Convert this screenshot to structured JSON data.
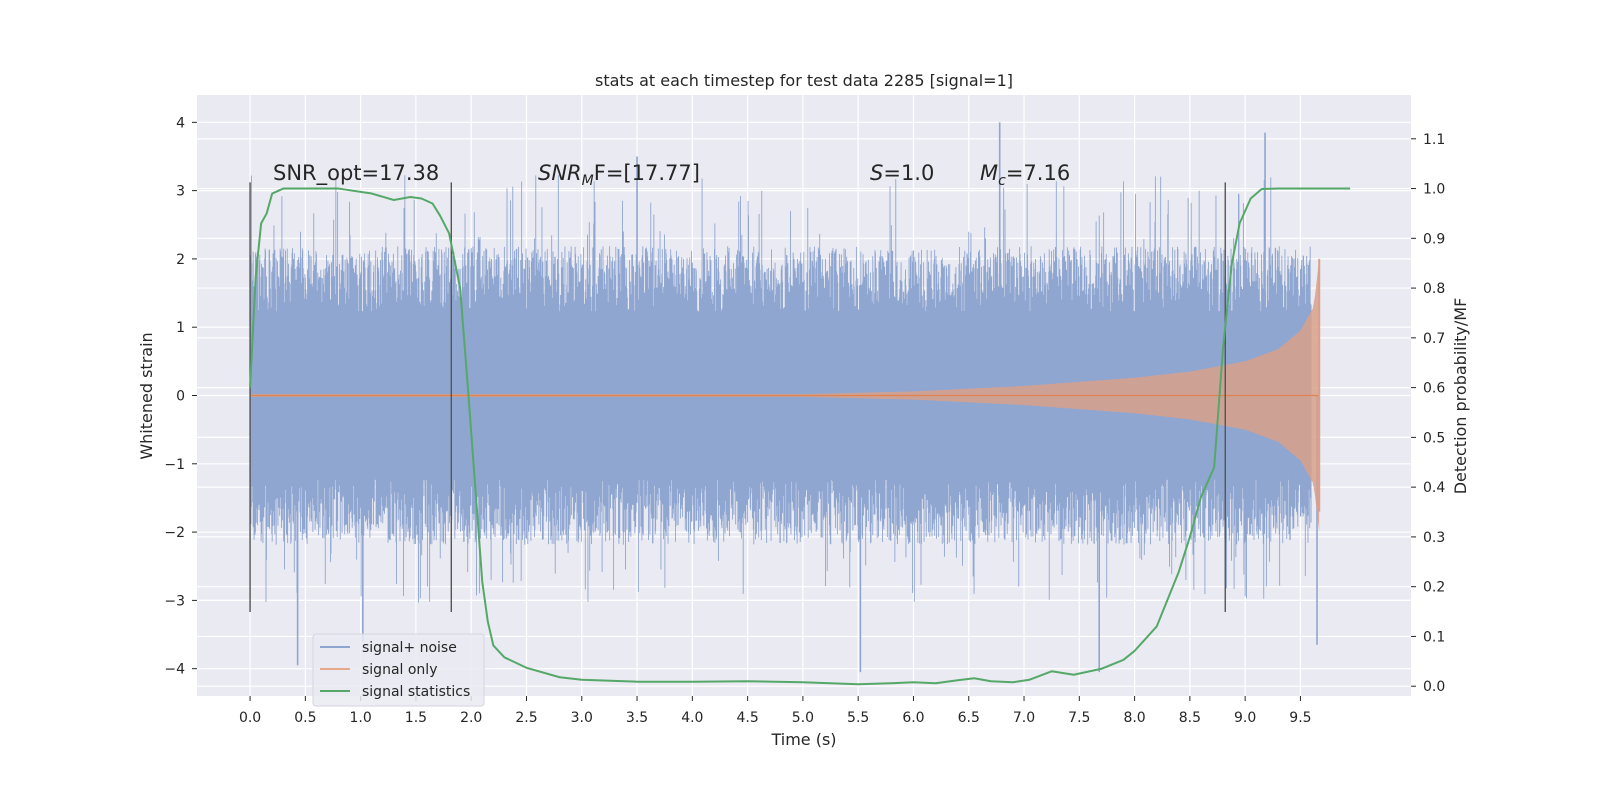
{
  "chart_data": {
    "type": "line",
    "title": "stats at each timestep for test data 2285 [signal=1]",
    "xlabel": "Time (s)",
    "ylabel": "Whitened strain",
    "y2label": "Detection probability/MF",
    "xlim": [
      -0.48,
      10.5
    ],
    "ylim": [
      -4.4,
      4.4
    ],
    "y2lim": [
      -0.0197,
      1.188
    ],
    "x_ticks": [
      "0.0",
      "0.5",
      "1.0",
      "1.5",
      "2.0",
      "2.5",
      "3.0",
      "3.5",
      "4.0",
      "4.5",
      "5.0",
      "5.5",
      "6.0",
      "6.5",
      "7.0",
      "7.5",
      "8.0",
      "8.5",
      "9.0",
      "9.5"
    ],
    "y_ticks": [
      "4",
      "3",
      "2",
      "1",
      "0",
      "−1",
      "−2",
      "−3",
      "−4"
    ],
    "y2_ticks": [
      "1.1",
      "1.0",
      "0.9",
      "0.8",
      "0.7",
      "0.6",
      "0.5",
      "0.4",
      "0.3",
      "0.2",
      "0.1",
      "0.0"
    ],
    "grid": true,
    "legend_position": "lower-left",
    "annotations": {
      "snr_opt": "SNR_opt=17.38",
      "snr_mf_main": "SNR",
      "snr_mf_sub": "M",
      "snr_mf_rest": "F=[17.77]",
      "s_main": "S",
      "s_rest": "=1.0",
      "mc_main": "M",
      "mc_sub": "c",
      "mc_rest": "=7.16"
    },
    "vertical_markers": [
      0.0,
      1.82,
      8.82
    ],
    "vertical_marker_range": [
      -3.17,
      3.12
    ],
    "series": [
      {
        "name": "signal+ noise",
        "color": "#8fa6d1",
        "description": "noise band, duration 0–9.6 s",
        "typical_amplitude": 1.9,
        "extremes": [
          [
            0.43,
            -3.95
          ],
          [
            6.78,
            4.0
          ],
          [
            9.18,
            3.85
          ],
          [
            5.52,
            -4.05
          ],
          [
            7.68,
            -4.05
          ],
          [
            3.5,
            3.5
          ],
          [
            1.02,
            -3.6
          ],
          [
            9.65,
            -3.65
          ]
        ]
      },
      {
        "name": "signal only",
        "color": "#dd8452",
        "description": "chirp growing toward merger at ~9.67 s",
        "envelope": [
          [
            0.0,
            0.02
          ],
          [
            5.0,
            0.02
          ],
          [
            6.0,
            0.06
          ],
          [
            7.0,
            0.14
          ],
          [
            8.0,
            0.26
          ],
          [
            8.5,
            0.35
          ],
          [
            9.0,
            0.5
          ],
          [
            9.3,
            0.68
          ],
          [
            9.5,
            0.95
          ],
          [
            9.62,
            1.3
          ],
          [
            9.67,
            2.0
          ]
        ]
      },
      {
        "name": "signal statistics",
        "color": "#55a868",
        "axis": "right",
        "x": [
          0.0,
          0.05,
          0.1,
          0.15,
          0.2,
          0.3,
          0.5,
          0.8,
          1.1,
          1.3,
          1.45,
          1.55,
          1.65,
          1.72,
          1.8,
          1.9,
          1.97,
          2.03,
          2.1,
          2.15,
          2.2,
          2.3,
          2.5,
          2.8,
          3.0,
          3.5,
          4.0,
          4.5,
          5.0,
          5.5,
          5.8,
          6.0,
          6.2,
          6.4,
          6.55,
          6.7,
          6.9,
          7.05,
          7.25,
          7.45,
          7.7,
          7.9,
          8.0,
          8.2,
          8.4,
          8.5,
          8.6,
          8.72,
          8.8,
          8.88,
          8.95,
          9.05,
          9.15,
          9.3,
          9.6,
          9.95
        ],
        "y": [
          0.6,
          0.82,
          0.93,
          0.95,
          0.99,
          1.0,
          1.0,
          1.0,
          0.99,
          0.977,
          0.983,
          0.98,
          0.97,
          0.945,
          0.91,
          0.8,
          0.6,
          0.42,
          0.21,
          0.13,
          0.082,
          0.058,
          0.037,
          0.018,
          0.013,
          0.009,
          0.009,
          0.01,
          0.008,
          0.004,
          0.006,
          0.008,
          0.006,
          0.012,
          0.016,
          0.01,
          0.008,
          0.013,
          0.03,
          0.023,
          0.035,
          0.053,
          0.071,
          0.12,
          0.23,
          0.3,
          0.38,
          0.44,
          0.68,
          0.85,
          0.93,
          0.98,
          0.999,
          1.0,
          1.0,
          1.0
        ]
      }
    ]
  }
}
